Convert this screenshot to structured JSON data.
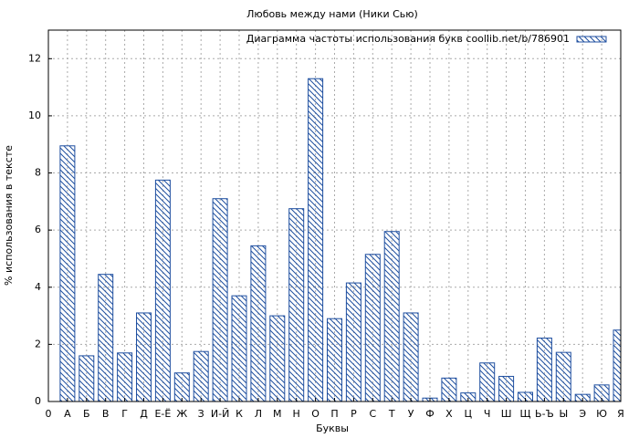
{
  "chart_data": {
    "type": "bar",
    "title": "Любовь между нами (Ники Сью)",
    "xlabel": "Буквы",
    "ylabel": "% использования в тексте",
    "categories": [
      "0",
      "А",
      "Б",
      "В",
      "Г",
      "Д",
      "Е-Ё",
      "Ж",
      "З",
      "И-Й",
      "К",
      "Л",
      "М",
      "Н",
      "О",
      "П",
      "Р",
      "С",
      "Т",
      "У",
      "Ф",
      "Х",
      "Ц",
      "Ч",
      "Ш",
      "Щ",
      "Ь-Ъ",
      "Ы",
      "Э",
      "Ю",
      "Я"
    ],
    "series": [
      {
        "name": "Диаграмма частоты использования букв coollib.net/b/786901",
        "color": "#1f4fa0",
        "values": [
          null,
          8.95,
          1.6,
          4.45,
          1.7,
          3.1,
          7.75,
          1.0,
          1.75,
          7.1,
          3.7,
          5.45,
          3.0,
          6.75,
          11.3,
          2.9,
          4.15,
          5.15,
          5.95,
          3.1,
          0.12,
          0.82,
          0.3,
          1.35,
          0.88,
          0.32,
          2.22,
          1.72,
          0.25,
          0.58,
          2.5
        ]
      }
    ],
    "ylim": [
      0,
      13
    ],
    "yticks": [
      0,
      2,
      4,
      6,
      8,
      10,
      12
    ],
    "grid": true,
    "legend": "top-right"
  }
}
